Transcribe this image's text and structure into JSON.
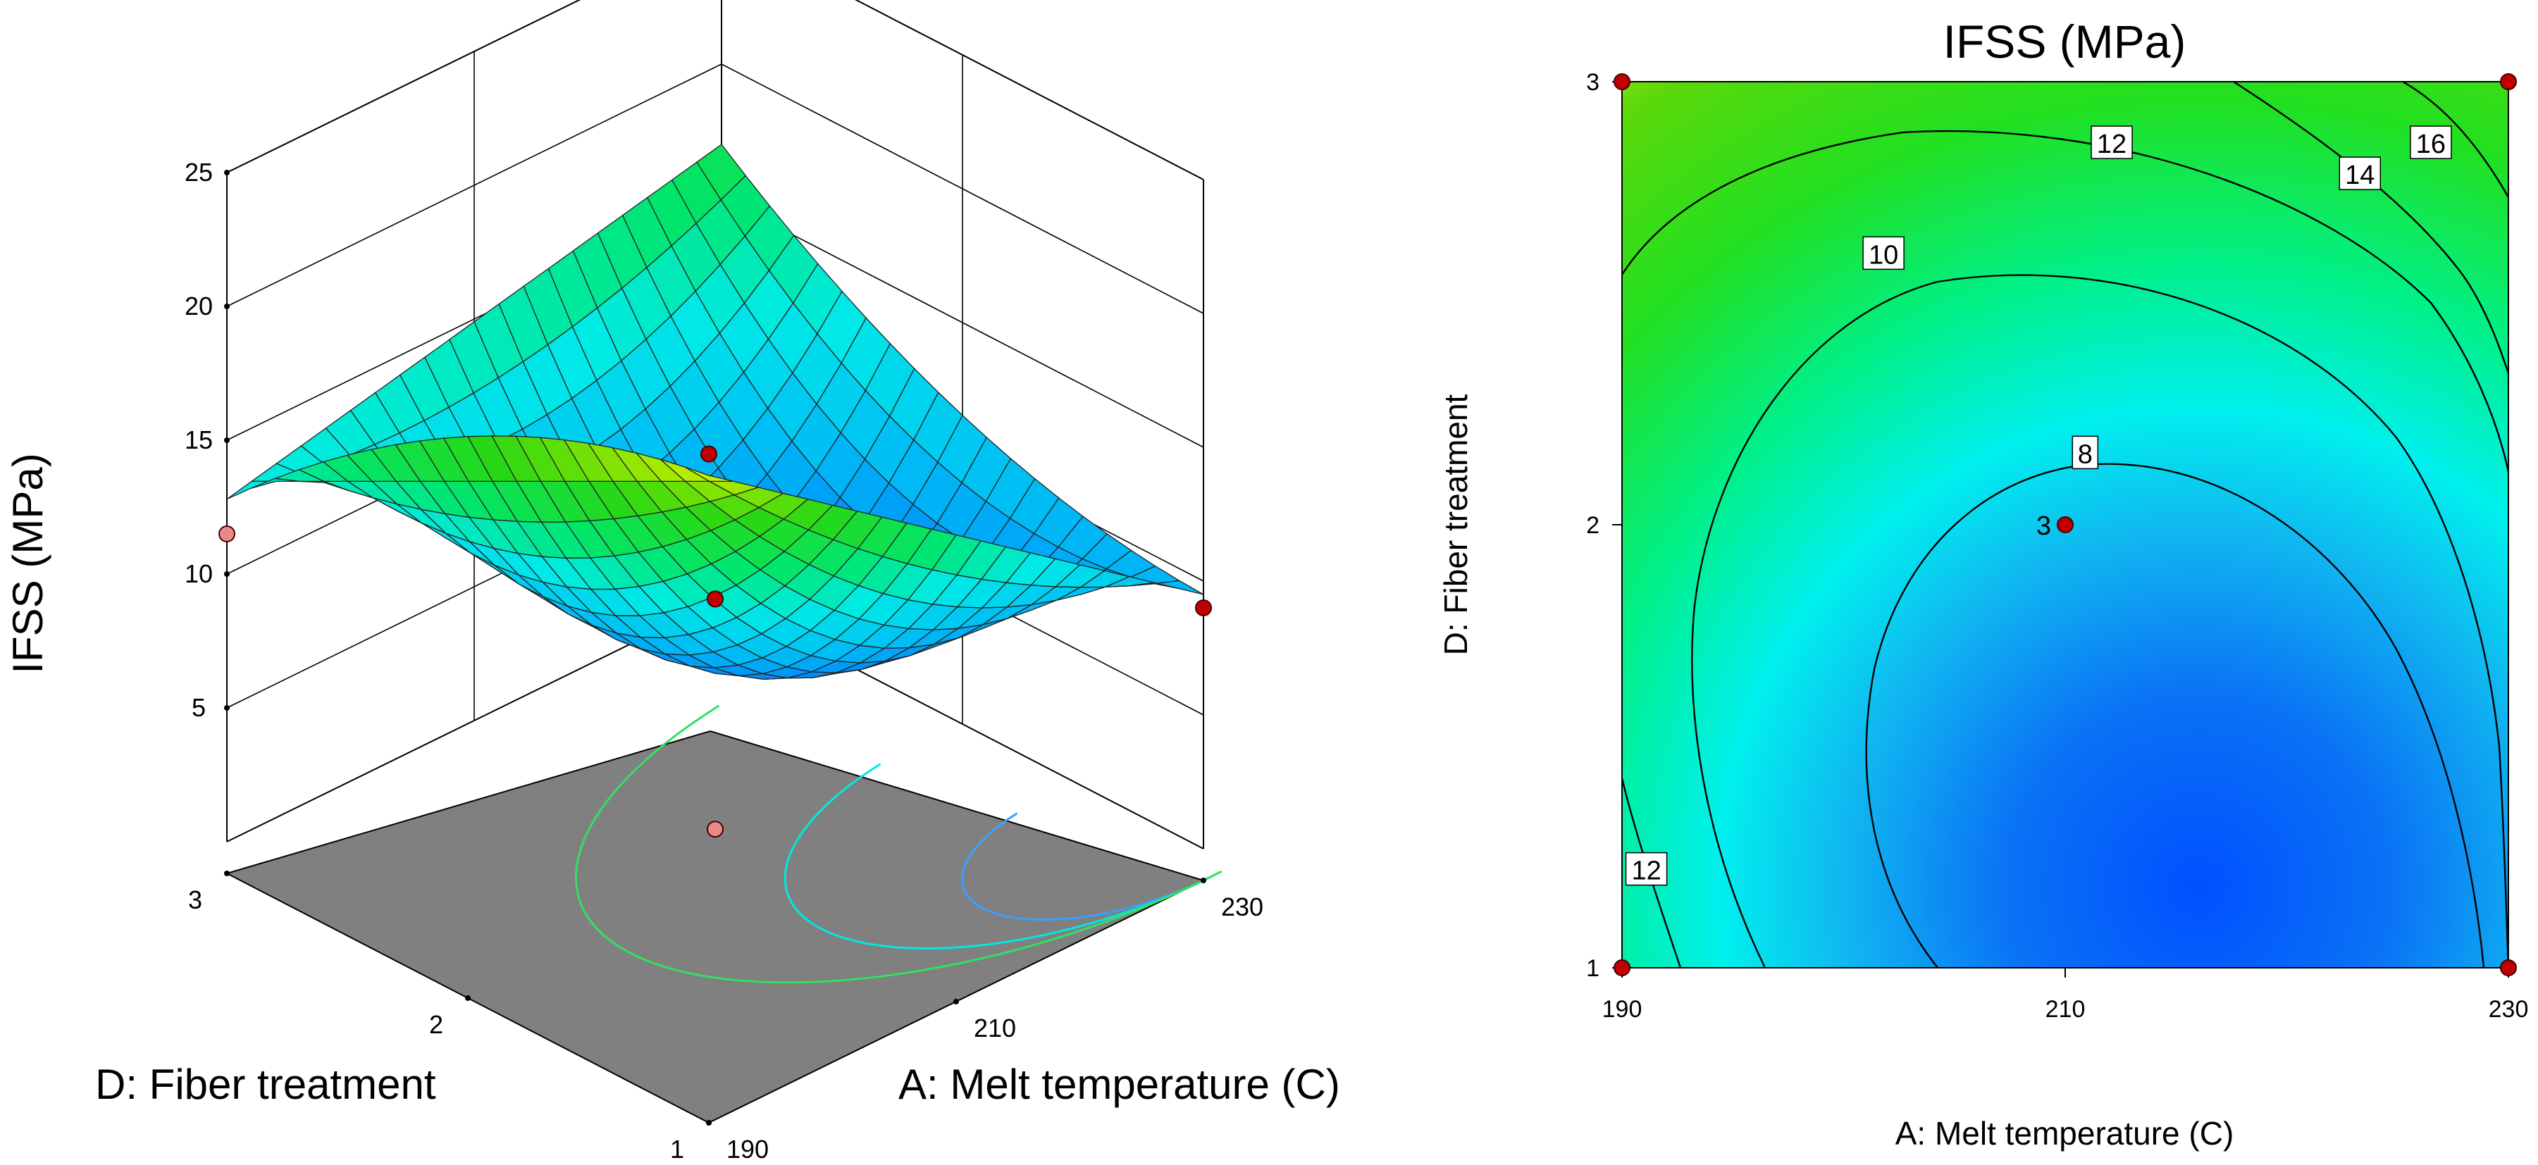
{
  "chart_data": [
    {
      "type": "surface3d",
      "zlabel": "IFSS (MPa)",
      "xlabel": "A: Melt temperature (C)",
      "ylabel": "D: Fiber treatment",
      "x_ticks": [
        "190",
        "210",
        "230"
      ],
      "y_ticks": [
        "1",
        "2",
        "3"
      ],
      "z_ticks": [
        "5",
        "10",
        "15",
        "20",
        "25"
      ],
      "x_range": [
        190,
        230
      ],
      "y_range": [
        1,
        3
      ],
      "z_range": [
        0,
        25
      ],
      "surface_corners": [
        {
          "x": 190,
          "y": 1,
          "z": 23.0
        },
        {
          "x": 230,
          "y": 1,
          "z": 9.5
        },
        {
          "x": 190,
          "y": 3,
          "z": 12.8
        },
        {
          "x": 230,
          "y": 3,
          "z": 17.0
        }
      ],
      "design_points": [
        {
          "x": 190,
          "y": 1,
          "z": 23.8,
          "color": "#c00000"
        },
        {
          "x": 230,
          "y": 1,
          "z": 9.0,
          "color": "#c00000"
        },
        {
          "x": 190,
          "y": 3,
          "z": 11.5,
          "color": "#e88a8a"
        },
        {
          "x": 210,
          "y": 2,
          "z": 9.2,
          "color": "#c00000"
        },
        {
          "x": 210,
          "y": 2,
          "z": 0.6,
          "color": "#e88a8a"
        }
      ]
    },
    {
      "type": "contour",
      "title": "IFSS (MPa)",
      "xlabel": "A: Melt temperature (C)",
      "ylabel": "D: Fiber treatment",
      "x_ticks": [
        "190",
        "210",
        "230"
      ],
      "y_ticks": [
        "1",
        "2",
        "3"
      ],
      "x_range": [
        190,
        230
      ],
      "y_range": [
        1,
        3
      ],
      "contour_levels": [
        8,
        10,
        12,
        14,
        16
      ],
      "contour_labels": [
        {
          "text": "16",
          "x": 226.5,
          "y": 2.86
        },
        {
          "text": "14",
          "x": 223.3,
          "y": 2.79
        },
        {
          "text": "12",
          "x": 212.1,
          "y": 2.86
        },
        {
          "text": "10",
          "x": 201.8,
          "y": 2.61
        },
        {
          "text": "8",
          "x": 210.9,
          "y": 2.16
        },
        {
          "text": "12",
          "x": 191.1,
          "y": 1.22
        }
      ],
      "center_point": {
        "label": "3",
        "x": 210,
        "y": 2
      },
      "design_points": [
        {
          "x": 190,
          "y": 1
        },
        {
          "x": 190,
          "y": 3
        },
        {
          "x": 230,
          "y": 1
        },
        {
          "x": 230,
          "y": 3
        },
        {
          "x": 210,
          "y": 2
        }
      ]
    }
  ]
}
